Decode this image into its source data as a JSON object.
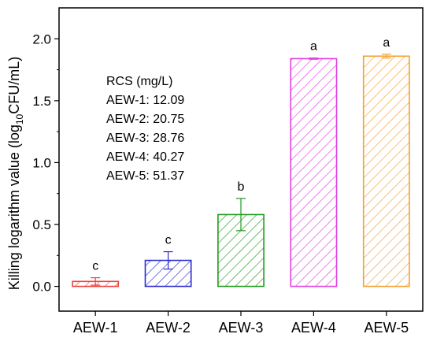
{
  "chart_data": {
    "type": "bar",
    "categories": [
      "AEW-1",
      "AEW-2",
      "AEW-3",
      "AEW-4",
      "AEW-5"
    ],
    "values": [
      0.04,
      0.21,
      0.58,
      1.84,
      1.86
    ],
    "errors": [
      0.03,
      0.07,
      0.13,
      0.005,
      0.015
    ],
    "significance": [
      "c",
      "c",
      "b",
      "a",
      "a"
    ],
    "colors": [
      "#f0403c",
      "#2c2cd0",
      "#1f9a1f",
      "#e040e0",
      "#f5a030"
    ],
    "ylabel": {
      "main": "Killing logarithm value (log",
      "sub": "10",
      "tail": "CFU/mL)"
    },
    "ylim": [
      -0.2,
      2.25
    ],
    "yticks": [
      0.0,
      0.5,
      1.0,
      1.5,
      2.0
    ],
    "ytick_labels": [
      "0.0",
      "0.5",
      "1.0",
      "1.5",
      "2.0"
    ],
    "bar_fill": "diagonal-hatch",
    "annotation": {
      "title": "RCS (mg/L)",
      "lines": [
        "AEW-1: 12.09",
        "AEW-2: 20.75",
        "AEW-3: 28.76",
        "AEW-4: 40.27",
        "AEW-5: 51.37"
      ]
    }
  }
}
